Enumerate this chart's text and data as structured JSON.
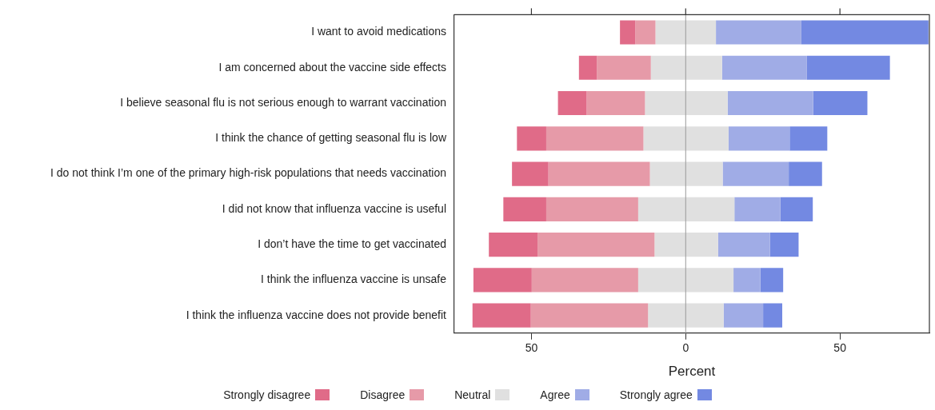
{
  "chart_data": {
    "type": "bar",
    "orientation": "horizontal",
    "categories": [
      "I want to avoid medications",
      "I am concerned about the vaccine side effects",
      "I believe seasonal flu is not serious enough to warrant vaccination",
      "I think the chance of getting seasonal flu is low",
      "I do not think I’m one of the primary high-risk populations that needs vaccination",
      "I did not know that influenza vaccine is useful",
      "I don’t have the time to get vaccinated",
      "I think the influenza vaccine is unsafe",
      "I think the influenza vaccine does not provide benefit"
    ],
    "series": [
      {
        "name": "Strongly disagree",
        "color": "#e06b88",
        "values": [
          5,
          5.8,
          9.3,
          9.5,
          11.8,
          13.9,
          15.8,
          18.9,
          18.9
        ],
        "base": [
          -21.3,
          -34.6,
          -41.4,
          -54.7,
          -56.3,
          -59.1,
          -63.8,
          -68.8,
          -69.1
        ]
      },
      {
        "name": "Disagree",
        "color": "#e69aa8",
        "values": [
          6.5,
          17.5,
          18.9,
          31.5,
          32.9,
          29.8,
          37.9,
          34.5,
          38
        ],
        "base": [
          -16.3,
          -28.8,
          -32.1,
          -45.2,
          -44.5,
          -45.2,
          -48.0,
          -49.9,
          -50.2
        ]
      },
      {
        "name": "Neutral",
        "color": "#e0e0e0",
        "values": [
          19.6,
          23.1,
          26.8,
          27.6,
          23.6,
          31.2,
          20.6,
          30.9,
          24.5
        ],
        "base": [
          -9.8,
          -11.3,
          -13.2,
          -13.7,
          -11.6,
          -15.4,
          -10.1,
          -15.4,
          -12.2
        ]
      },
      {
        "name": "Agree",
        "color": "#a0ace6",
        "values": [
          27.7,
          27.5,
          27.7,
          19.8,
          21.4,
          14.9,
          16.8,
          8.7,
          12.8
        ],
        "base": [
          9.8,
          11.8,
          13.6,
          13.9,
          12.0,
          15.8,
          10.5,
          15.5,
          12.3
        ]
      },
      {
        "name": "Strongly agree",
        "color": "#7389e2",
        "values": [
          41.2,
          26.9,
          17.6,
          12.2,
          10.8,
          10.5,
          9.3,
          7.4,
          6.2
        ],
        "base": [
          37.5,
          39.3,
          41.3,
          33.7,
          33.4,
          30.7,
          27.3,
          24.2,
          25.1
        ]
      }
    ],
    "xlim": [
      -75,
      79
    ],
    "xticks": [
      {
        "value": -50,
        "label": "50"
      },
      0,
      50
    ],
    "xlabel": "Percent",
    "ref_lines": [
      {
        "axis": "x",
        "value": 0,
        "color": "#999999"
      }
    ],
    "grid": false,
    "legend": "bottom"
  }
}
